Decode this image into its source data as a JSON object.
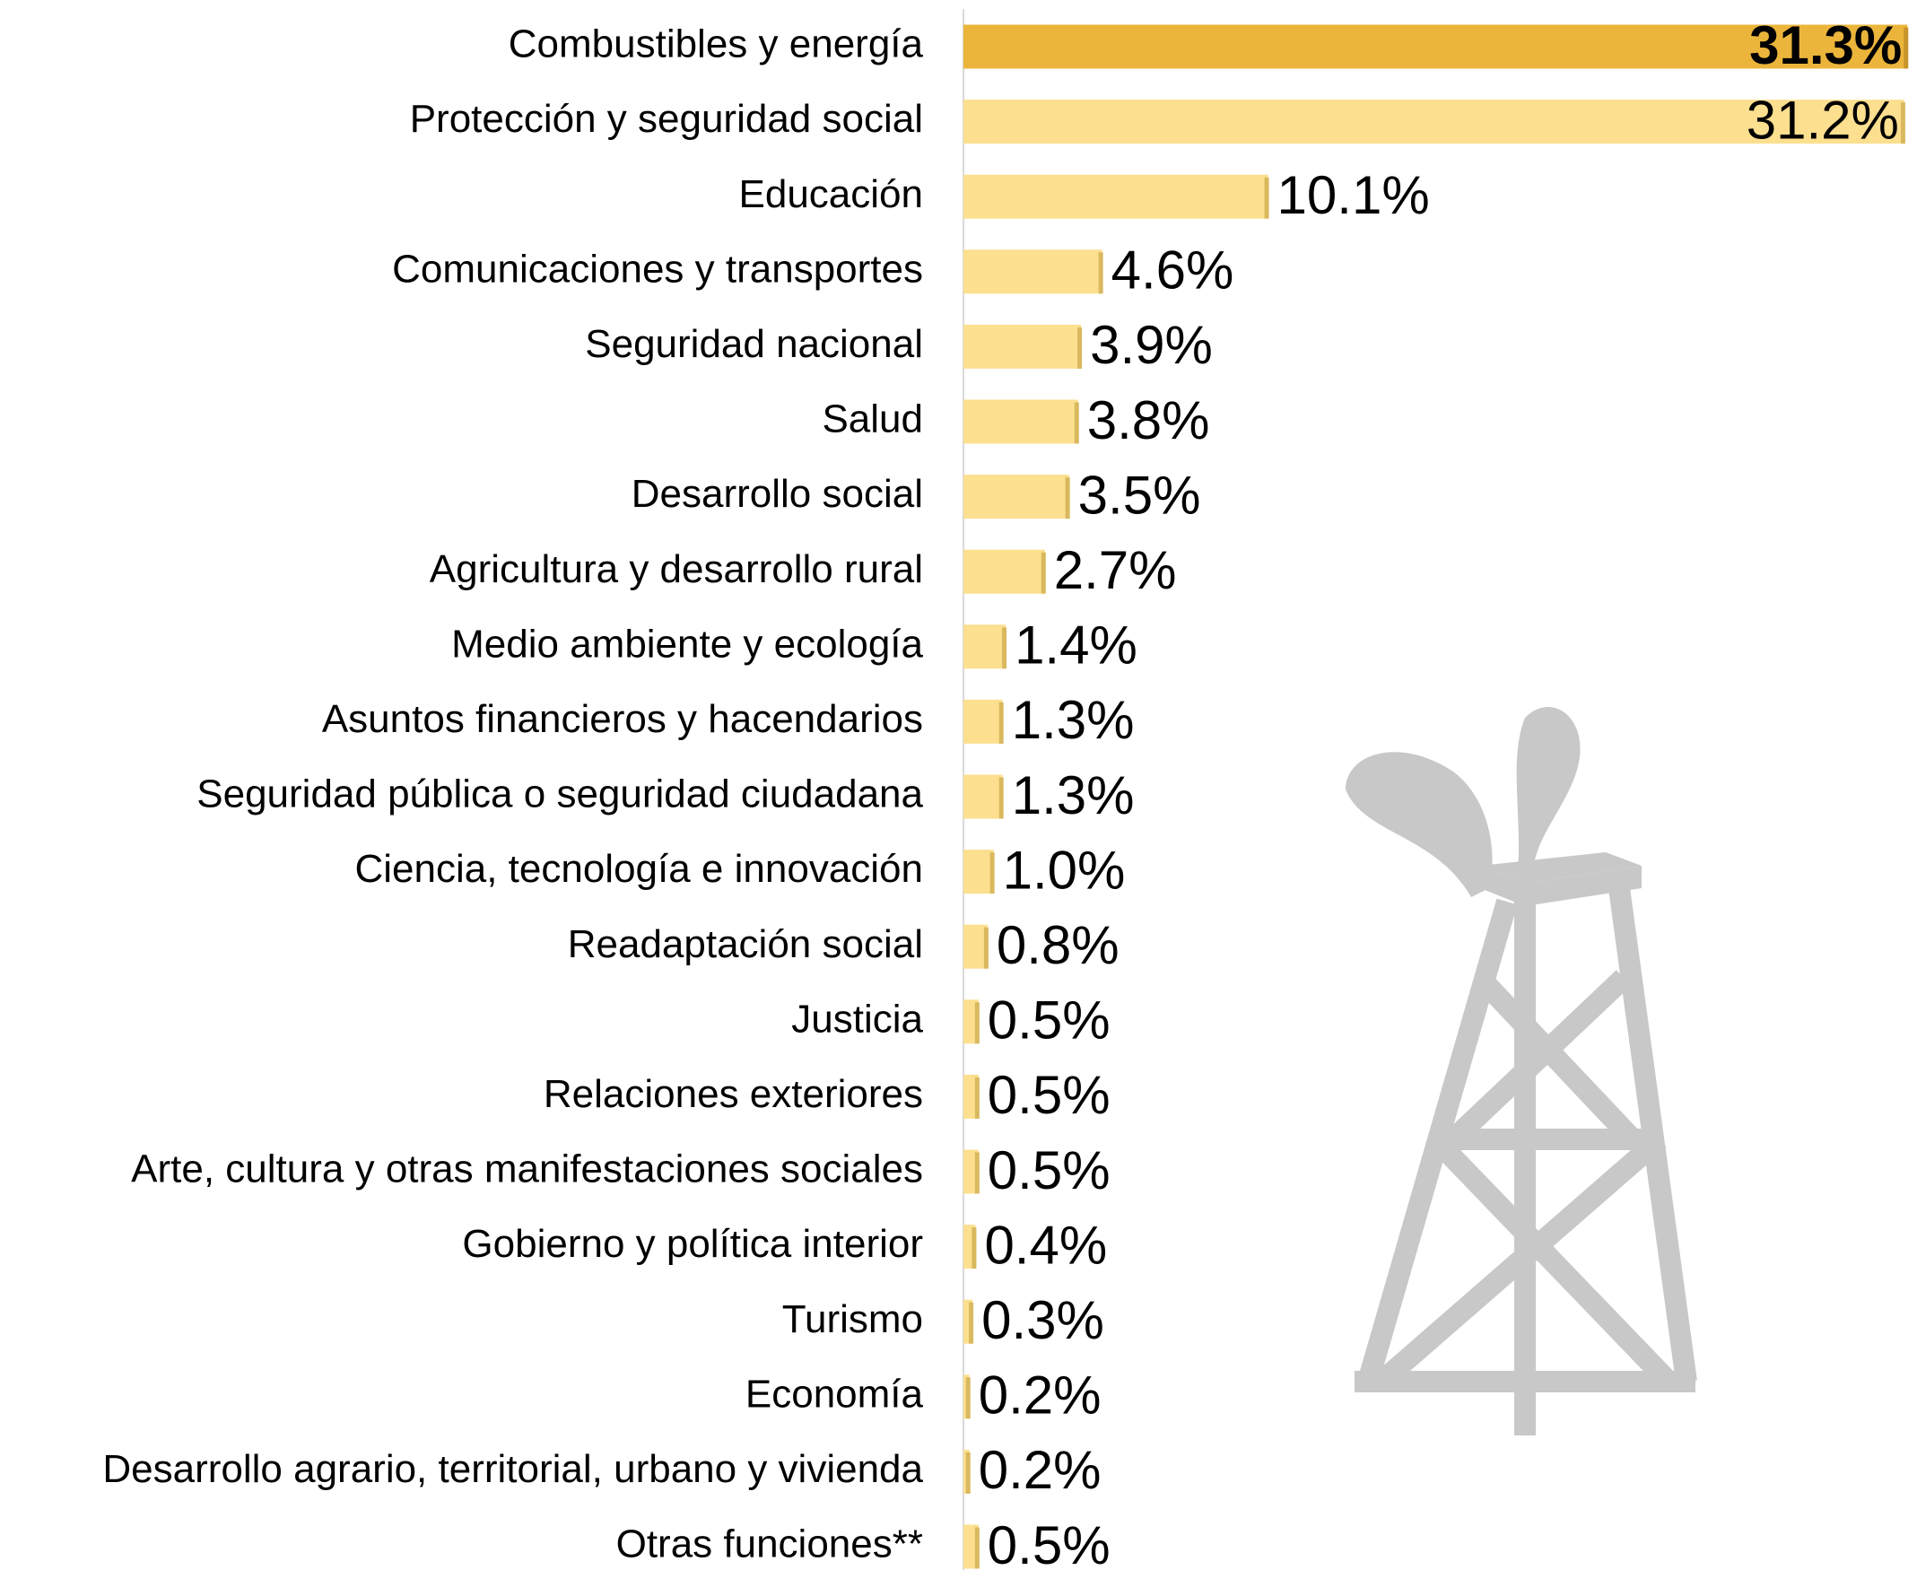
{
  "chart_data": {
    "type": "hbar",
    "categories": [
      "Combustibles y energía",
      "Protección y seguridad social",
      "Educación",
      "Comunicaciones y transportes",
      "Seguridad nacional ",
      "Salud",
      "Desarrollo social",
      "Agricultura y desarrollo rural",
      "Medio ambiente y ecología",
      "Asuntos financieros y hacendarios",
      "Seguridad pública o seguridad ciudadana",
      "Ciencia, tecnología e innovación",
      "Readaptación social",
      "Justicia",
      "Relaciones exteriores",
      "Arte, cultura y otras manifestaciones sociales",
      "Gobierno y política interior",
      "Turismo",
      "Economía",
      "Desarrollo agrario, territorial, urbano y vivienda",
      "Otras funciones**"
    ],
    "values": [
      31.3,
      31.2,
      10.1,
      4.6,
      3.9,
      3.8,
      3.5,
      2.7,
      1.4,
      1.3,
      1.3,
      1.0,
      0.8,
      0.5,
      0.5,
      0.5,
      0.4,
      0.3,
      0.2,
      0.2,
      0.5
    ],
    "value_labels": [
      "31.3%",
      "31.2%",
      "10.1%",
      "4.6%",
      "3.9%",
      "3.8%",
      "3.5%",
      "2.7%",
      "1.4%",
      "1.3%",
      "1.3%",
      "1.0%",
      "0.8%",
      "0.5%",
      "0.5%",
      "0.5%",
      "0.4%",
      "0.3%",
      "0.2%",
      "0.2%",
      "0.5%"
    ],
    "colors": [
      "#ebb53b",
      "#fcdf8f",
      "#fcdf8f",
      "#fcdf8f",
      "#fcdf8f",
      "#fcdf8f",
      "#fcdf8f",
      "#fcdf8f",
      "#fcdf8f",
      "#fcdf8f",
      "#fcdf8f",
      "#fcdf8f",
      "#fcdf8f",
      "#fcdf8f",
      "#fcdf8f",
      "#fcdf8f",
      "#fcdf8f",
      "#fcdf8f",
      "#fcdf8f",
      "#fcdf8f",
      "#fcdf8f"
    ],
    "xlim": [
      0,
      31.5
    ]
  }
}
